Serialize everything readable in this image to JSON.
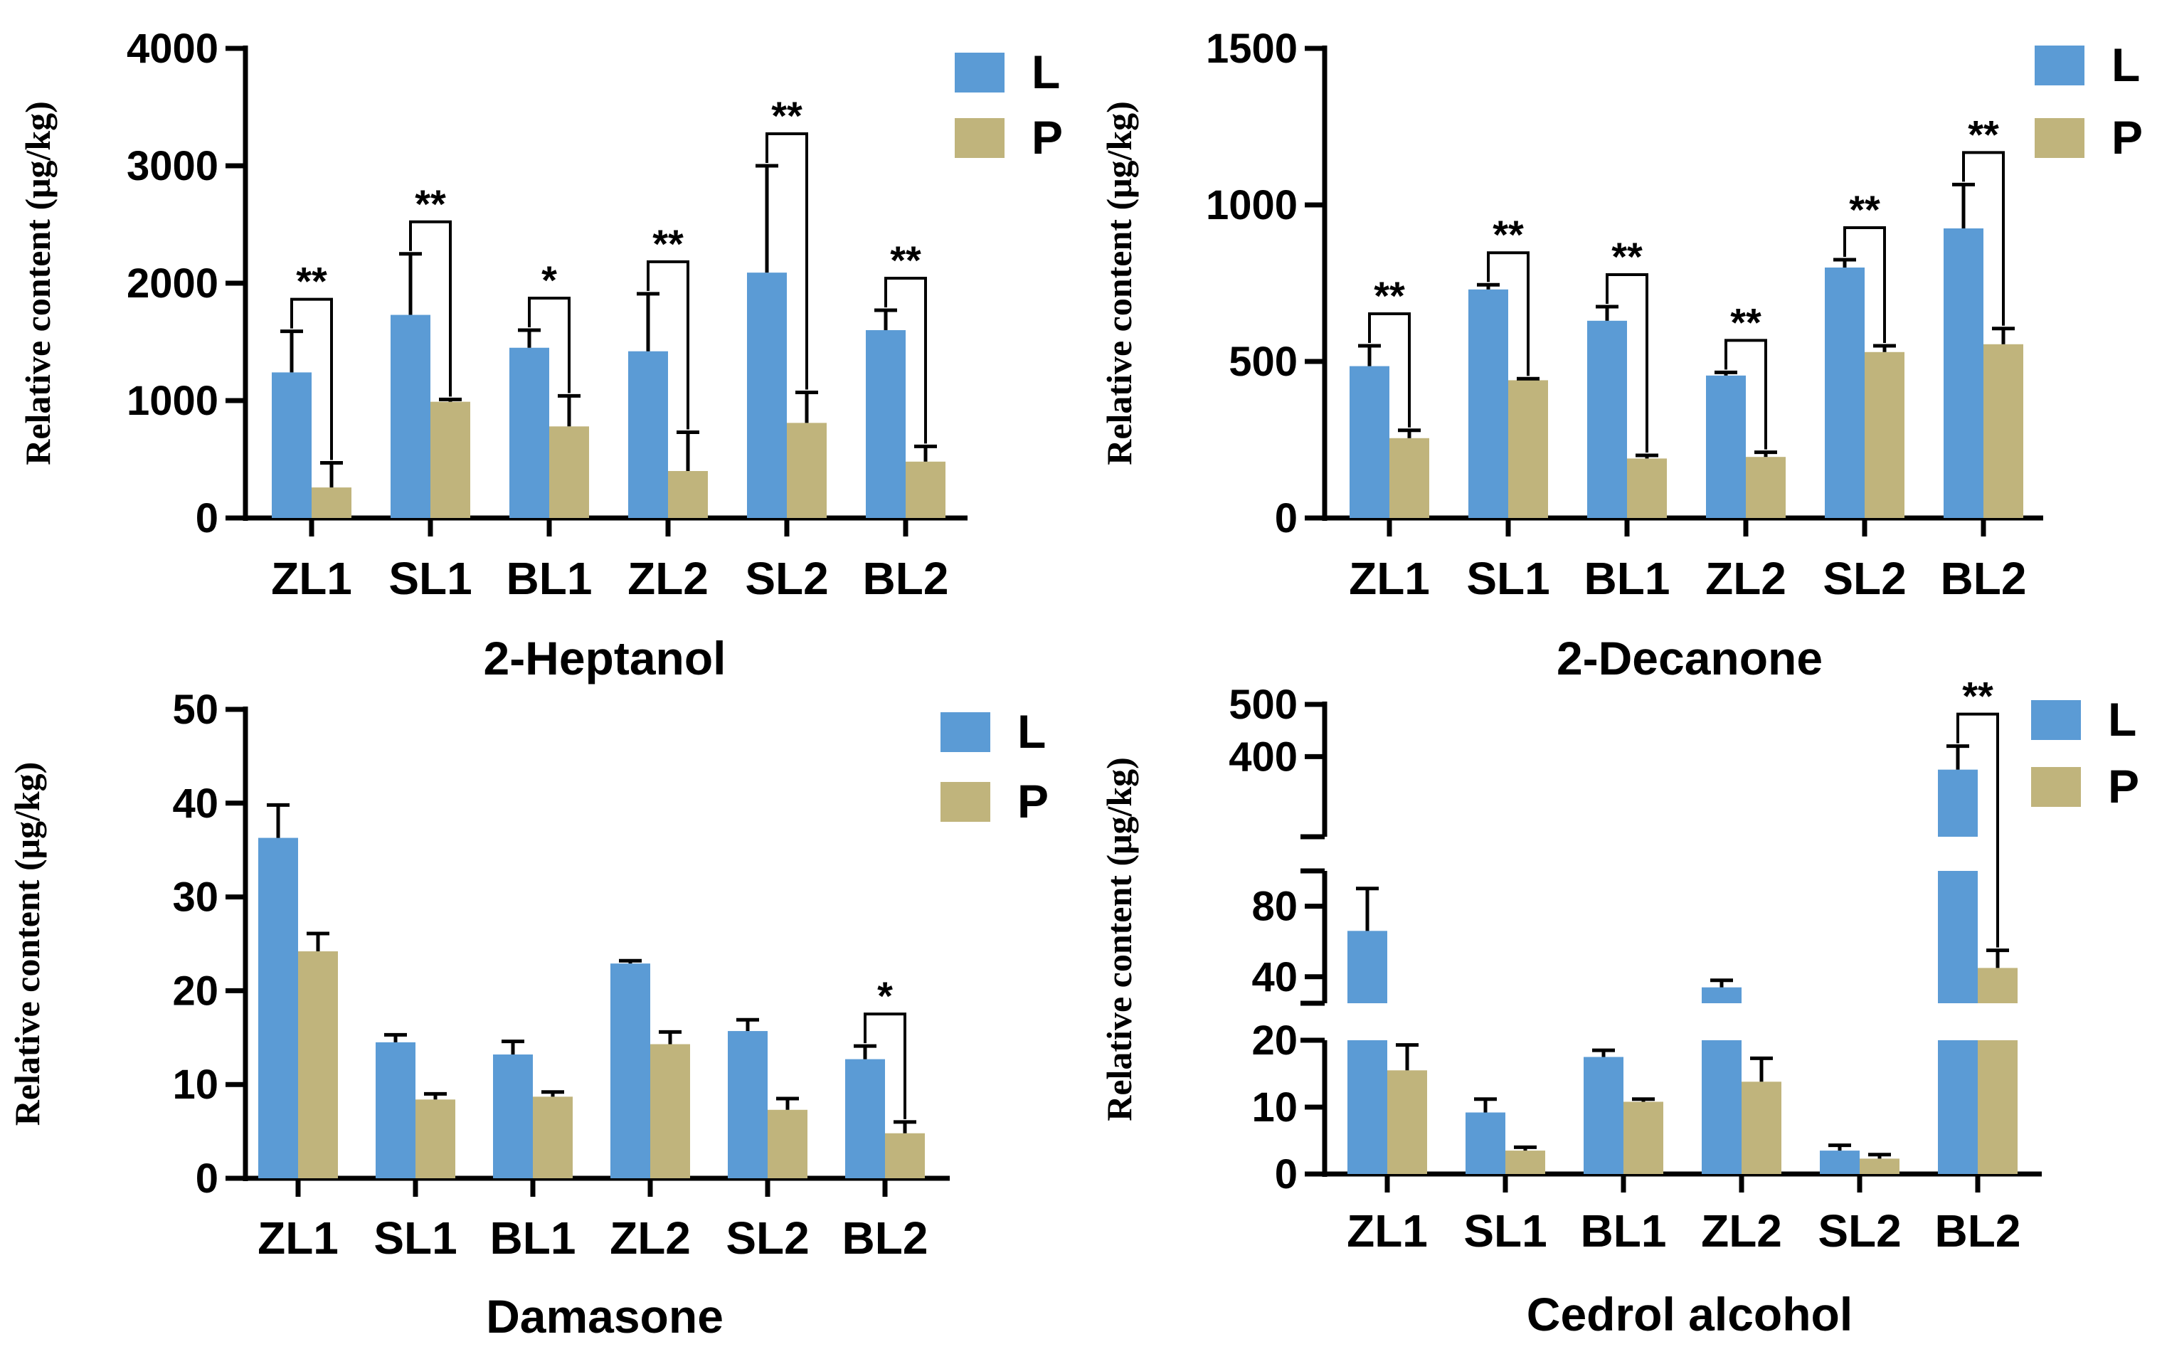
{
  "colors": {
    "L": "#5b9bd5",
    "P": "#c0b47c",
    "axis": "#000000"
  },
  "chart_data": [
    {
      "type": "bar",
      "title": "2-Heptanol",
      "ylabel": "Relative content (μg/kg)",
      "xlabel": "",
      "ylim": [
        0,
        4000
      ],
      "yticks": [
        0,
        1000,
        2000,
        3000,
        4000
      ],
      "categories": [
        "ZL1",
        "SL1",
        "BL1",
        "ZL2",
        "SL2",
        "BL2"
      ],
      "legend": [
        "L",
        "P"
      ],
      "series": [
        {
          "name": "L",
          "values": [
            1240,
            1730,
            1450,
            1420,
            2090,
            1600
          ],
          "errors": [
            350,
            520,
            150,
            490,
            910,
            170
          ]
        },
        {
          "name": "P",
          "values": [
            260,
            990,
            780,
            400,
            810,
            480
          ],
          "errors": [
            210,
            20,
            260,
            330,
            260,
            130
          ]
        }
      ],
      "significance": [
        "**",
        "**",
        "*",
        "**",
        "**",
        "**"
      ]
    },
    {
      "type": "bar",
      "title": "2-Decanone",
      "ylabel": "Relative content (μg/kg)",
      "xlabel": "",
      "ylim": [
        0,
        1500
      ],
      "yticks": [
        0,
        500,
        1000,
        1500
      ],
      "categories": [
        "ZL1",
        "SL1",
        "BL1",
        "ZL2",
        "SL2",
        "BL2"
      ],
      "legend": [
        "L",
        "P"
      ],
      "series": [
        {
          "name": "L",
          "values": [
            485,
            730,
            630,
            455,
            800,
            925
          ],
          "errors": [
            65,
            15,
            45,
            10,
            25,
            140
          ]
        },
        {
          "name": "P",
          "values": [
            255,
            440,
            190,
            195,
            530,
            555
          ],
          "errors": [
            25,
            5,
            10,
            15,
            20,
            50
          ]
        }
      ],
      "significance": [
        "**",
        "**",
        "**",
        "**",
        "**",
        "**"
      ]
    },
    {
      "type": "bar",
      "title": "Damasone",
      "ylabel": "Relative content (μg/kg)",
      "xlabel": "",
      "ylim": [
        0,
        50
      ],
      "yticks": [
        0,
        10,
        20,
        30,
        40,
        50
      ],
      "categories": [
        "ZL1",
        "SL1",
        "BL1",
        "ZL2",
        "SL2",
        "BL2"
      ],
      "legend": [
        "L",
        "P"
      ],
      "series": [
        {
          "name": "L",
          "values": [
            36.3,
            14.5,
            13.2,
            22.9,
            15.7,
            12.7
          ],
          "errors": [
            3.5,
            0.8,
            1.4,
            0.3,
            1.2,
            1.4
          ]
        },
        {
          "name": "P",
          "values": [
            24.2,
            8.4,
            8.7,
            14.3,
            7.3,
            4.8
          ],
          "errors": [
            1.9,
            0.6,
            0.5,
            1.3,
            1.2,
            1.2
          ]
        }
      ],
      "significance": [
        "",
        "",
        "",
        "",
        "",
        "*"
      ]
    },
    {
      "type": "bar",
      "title": "Cedrol alcohol",
      "ylabel": "Relative content (μg/kg)",
      "xlabel": "",
      "axis_breaks": [
        [
          20,
          25
        ],
        [
          100,
          350
        ]
      ],
      "ytick_labels": [
        "0",
        "10",
        "20",
        "40",
        "80",
        "400",
        "500"
      ],
      "categories": [
        "ZL1",
        "SL1",
        "BL1",
        "ZL2",
        "SL2",
        "BL2"
      ],
      "legend": [
        "L",
        "P"
      ],
      "series": [
        {
          "name": "L",
          "values": [
            66,
            9.2,
            17.5,
            34,
            3.5,
            375
          ],
          "errors": [
            24,
            2,
            1,
            4,
            0.8,
            45
          ]
        },
        {
          "name": "P",
          "values": [
            15.5,
            3.5,
            10.8,
            13.8,
            2.3,
            45
          ],
          "errors": [
            3.8,
            0.5,
            0.4,
            3.5,
            0.6,
            10
          ]
        }
      ],
      "significance": [
        "",
        "",
        "",
        "",
        "",
        "**"
      ]
    }
  ]
}
